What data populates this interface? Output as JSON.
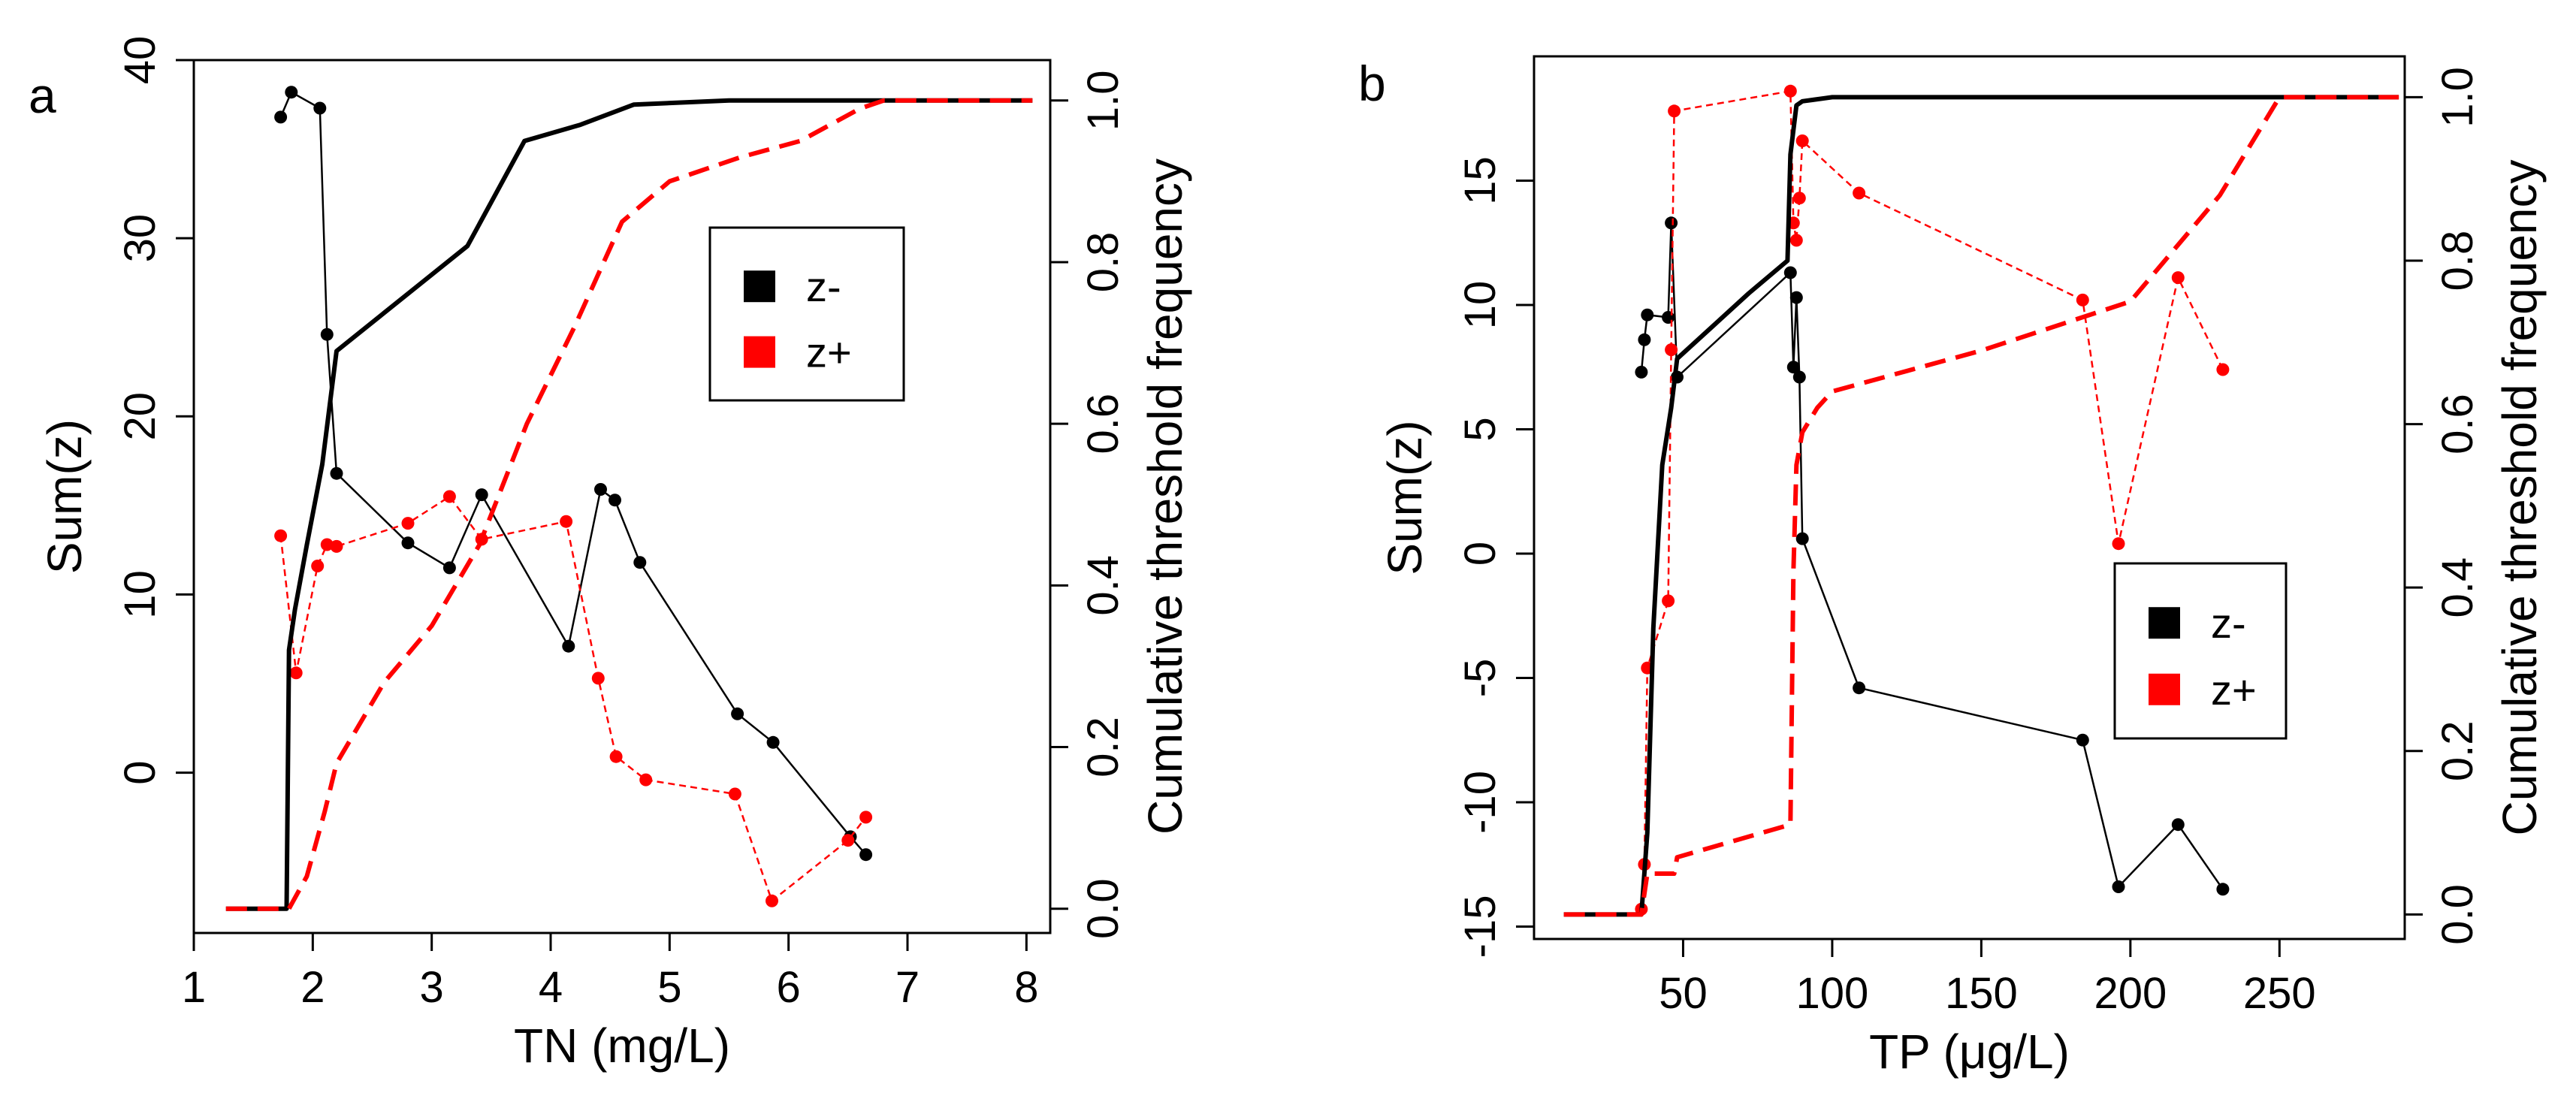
{
  "colors": {
    "black_series": "#000000",
    "red_series": "#ff0000"
  },
  "chart_data": [
    {
      "type": "line",
      "panel_label": "a",
      "xlabel": "TN (mg/L)",
      "ylabel": "Sum(z)",
      "ylabel_right": "Cumulative threshold frequency",
      "xlim": [
        1,
        8.2
      ],
      "ylim": [
        -9,
        40
      ],
      "ylim_right": [
        -0.03,
        1.05
      ],
      "xticks": [
        1,
        2,
        3,
        4,
        5,
        6,
        7,
        8
      ],
      "yticks": [
        0,
        10,
        20,
        30,
        40
      ],
      "yticks_right": [
        "0.0",
        "0.2",
        "0.4",
        "0.6",
        "0.8",
        "1.0"
      ],
      "legend": {
        "position": "center-right",
        "entries": [
          "z-",
          "z+"
        ]
      },
      "series": [
        {
          "name": "z-",
          "kind": "sum_z_points",
          "color": "#000000",
          "x": [
            1.73,
            1.82,
            2.06,
            2.12,
            2.2,
            2.8,
            3.15,
            3.42,
            4.15,
            4.42,
            4.54,
            4.75,
            5.57,
            5.87,
            6.52,
            6.65
          ],
          "y": [
            36.8,
            38.2,
            37.3,
            24.6,
            16.8,
            12.9,
            11.5,
            15.6,
            7.1,
            15.9,
            15.3,
            11.8,
            3.3,
            1.7,
            -3.6,
            -4.6
          ]
        },
        {
          "name": "z+",
          "kind": "sum_z_points",
          "color": "#ff0000",
          "x": [
            1.73,
            1.86,
            2.04,
            2.12,
            2.2,
            2.8,
            3.15,
            3.42,
            4.13,
            4.4,
            4.55,
            4.8,
            5.55,
            5.86,
            6.5,
            6.65
          ],
          "y": [
            13.3,
            5.6,
            11.6,
            12.8,
            12.7,
            14.0,
            15.5,
            13.1,
            14.1,
            5.3,
            0.9,
            -0.4,
            -1.2,
            -7.2,
            -3.8,
            -2.5
          ]
        },
        {
          "name": "z-",
          "kind": "cumulative_frequency",
          "color": "#000000",
          "x": [
            1.27,
            1.78,
            1.8,
            1.85,
            1.95,
            2.08,
            2.2,
            3.3,
            3.78,
            4.25,
            4.7,
            5.5,
            6.0,
            6.7,
            8.05
          ],
          "y": [
            0.0,
            0.0,
            0.32,
            0.37,
            0.45,
            0.55,
            0.69,
            0.82,
            0.95,
            0.97,
            0.995,
            1.0,
            1.0,
            1.0,
            1.0
          ]
        },
        {
          "name": "z+",
          "kind": "cumulative_frequency",
          "color": "#ff0000",
          "x": [
            1.27,
            1.8,
            1.95,
            2.1,
            2.2,
            2.6,
            3.0,
            3.4,
            3.8,
            4.2,
            4.6,
            5.0,
            5.6,
            6.1,
            6.6,
            6.8,
            8.05
          ],
          "y": [
            0.0,
            0.0,
            0.04,
            0.12,
            0.18,
            0.28,
            0.35,
            0.45,
            0.6,
            0.72,
            0.85,
            0.9,
            0.93,
            0.95,
            0.99,
            1.0,
            1.0
          ]
        }
      ]
    },
    {
      "type": "line",
      "panel_label": "b",
      "xlabel": "TP (μg/L)",
      "ylabel": "Sum(z)",
      "ylabel_right": "Cumulative threshold frequency",
      "xlim": [
        0,
        292
      ],
      "ylim": [
        -15.5,
        20
      ],
      "ylim_right": [
        -0.03,
        1.05
      ],
      "xticks": [
        50,
        100,
        150,
        200,
        250
      ],
      "yticks": [
        -15,
        -10,
        -5,
        0,
        5,
        10,
        15
      ],
      "yticks_right": [
        "0.0",
        "0.2",
        "0.4",
        "0.6",
        "0.8",
        "1.0"
      ],
      "legend": {
        "position": "lower-right",
        "entries": [
          "z-",
          "z+"
        ]
      },
      "series": [
        {
          "name": "z-",
          "kind": "sum_z_points",
          "color": "#000000",
          "x": [
            36,
            37,
            38,
            45,
            46,
            48,
            86,
            87,
            88,
            89,
            90,
            109,
            184,
            196,
            216,
            231
          ],
          "y": [
            7.3,
            8.6,
            9.6,
            9.5,
            13.3,
            7.1,
            11.3,
            7.5,
            10.3,
            7.1,
            0.6,
            -5.4,
            -7.5,
            -13.4,
            -10.9,
            -13.5
          ]
        },
        {
          "name": "z+",
          "kind": "sum_z_points",
          "color": "#ff0000",
          "x": [
            36,
            37,
            38,
            45,
            46,
            47,
            86,
            87,
            88,
            89,
            90,
            109,
            184,
            196,
            216,
            231
          ],
          "y": [
            -14.3,
            -12.5,
            -4.6,
            -1.9,
            8.2,
            17.8,
            18.6,
            13.3,
            12.6,
            14.3,
            16.6,
            14.5,
            10.2,
            0.4,
            11.1,
            7.4
          ]
        },
        {
          "name": "z-",
          "kind": "cumulative_frequency",
          "color": "#000000",
          "x": [
            10,
            36,
            38,
            40,
            43,
            46,
            48,
            60,
            72,
            85,
            86,
            88,
            90,
            100,
            250,
            290
          ],
          "y": [
            0.0,
            0.0,
            0.1,
            0.35,
            0.55,
            0.62,
            0.68,
            0.72,
            0.76,
            0.8,
            0.93,
            0.99,
            0.995,
            1.0,
            1.0,
            1.0
          ]
        },
        {
          "name": "z+",
          "kind": "cumulative_frequency",
          "color": "#ff0000",
          "x": [
            10,
            36,
            38,
            47,
            48,
            86,
            87,
            88,
            90,
            95,
            100,
            150,
            200,
            230,
            250,
            290
          ],
          "y": [
            0.0,
            0.0,
            0.05,
            0.05,
            0.07,
            0.11,
            0.42,
            0.55,
            0.59,
            0.62,
            0.64,
            0.69,
            0.75,
            0.88,
            1.0,
            1.0
          ]
        }
      ]
    }
  ]
}
